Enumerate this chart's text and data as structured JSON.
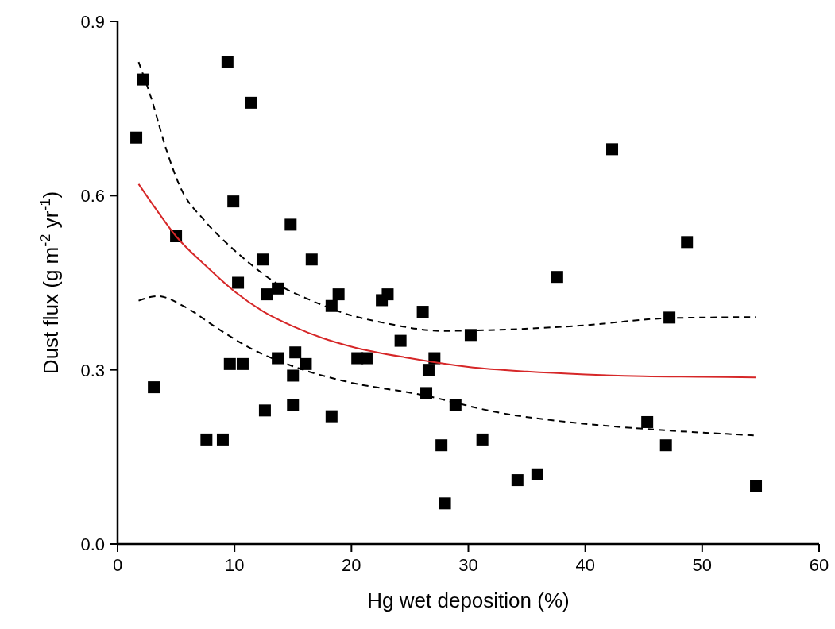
{
  "chart_data": {
    "type": "scatter",
    "xlabel": "Hg wet deposition (%)",
    "ylabel": "Dust flux (g m$^{-2}$ yr$^{-1}$)",
    "xlim": [
      0,
      60
    ],
    "ylim": [
      0,
      0.9
    ],
    "xticks": [
      0,
      10,
      20,
      30,
      40,
      50,
      60
    ],
    "yticks": [
      {
        "value": 0,
        "label": "0.0"
      },
      0.3,
      0.6,
      0.9
    ],
    "grid": false,
    "series": [
      {
        "marker": "square",
        "color": "#000000",
        "x": [
          1.6,
          2.2,
          3.1,
          5.0,
          7.6,
          9.0,
          9.4,
          9.6,
          9.9,
          10.3,
          10.7,
          11.4,
          12.4,
          12.6,
          12.8,
          13.7,
          13.7,
          14.8,
          15.0,
          15.0,
          15.2,
          16.1,
          16.6,
          18.3,
          18.3,
          18.9,
          20.5,
          21.3,
          22.6,
          23.1,
          24.2,
          26.1,
          27.1,
          26.6,
          26.4,
          28.9,
          27.7,
          28.0,
          30.2,
          31.2,
          34.2,
          35.9,
          37.6,
          42.3,
          48.7,
          47.2,
          45.3,
          46.9,
          54.6
        ],
        "values": [
          0.7,
          0.8,
          0.27,
          0.53,
          0.18,
          0.18,
          0.83,
          0.31,
          0.59,
          0.45,
          0.31,
          0.76,
          0.49,
          0.23,
          0.43,
          0.44,
          0.32,
          0.55,
          0.29,
          0.24,
          0.33,
          0.31,
          0.49,
          0.22,
          0.41,
          0.43,
          0.32,
          0.32,
          0.42,
          0.43,
          0.35,
          0.4,
          0.32,
          0.3,
          0.26,
          0.24,
          0.17,
          0.07,
          0.36,
          0.18,
          0.11,
          0.12,
          0.46,
          0.68,
          0.52,
          0.39,
          0.21,
          0.17,
          0.1
        ]
      },
      {
        "type": "line",
        "line_style": "solid",
        "color": "#d62728",
        "x": [
          1.8,
          3,
          5,
          7.5,
          10,
          12.5,
          15,
          17.5,
          20,
          25,
          30,
          35,
          40,
          45,
          50,
          54.6
        ],
        "values": [
          0.62,
          0.585,
          0.53,
          0.48,
          0.435,
          0.4,
          0.375,
          0.355,
          0.34,
          0.32,
          0.305,
          0.297,
          0.292,
          0.289,
          0.288,
          0.287
        ]
      },
      {
        "type": "line",
        "line_style": "dashed",
        "color": "#000000",
        "x": [
          1.8,
          3,
          4,
          5.4,
          7.4,
          9.5,
          11.5,
          13.9,
          16.5,
          19.3,
          23,
          27.8,
          32.7,
          39.5,
          47.2,
          54.6
        ],
        "values": [
          0.83,
          0.76,
          0.69,
          0.613,
          0.558,
          0.515,
          0.48,
          0.445,
          0.42,
          0.398,
          0.38,
          0.367,
          0.369,
          0.376,
          0.389,
          0.391
        ]
      },
      {
        "type": "line",
        "line_style": "dashed",
        "color": "#000000",
        "x": [
          1.8,
          3.4,
          5.8,
          8.5,
          11.2,
          15.3,
          19.5,
          26.0,
          32.7,
          39.5,
          45.3,
          54.6
        ],
        "values": [
          0.419,
          0.427,
          0.408,
          0.372,
          0.339,
          0.304,
          0.28,
          0.257,
          0.226,
          0.208,
          0.198,
          0.187
        ]
      }
    ]
  }
}
